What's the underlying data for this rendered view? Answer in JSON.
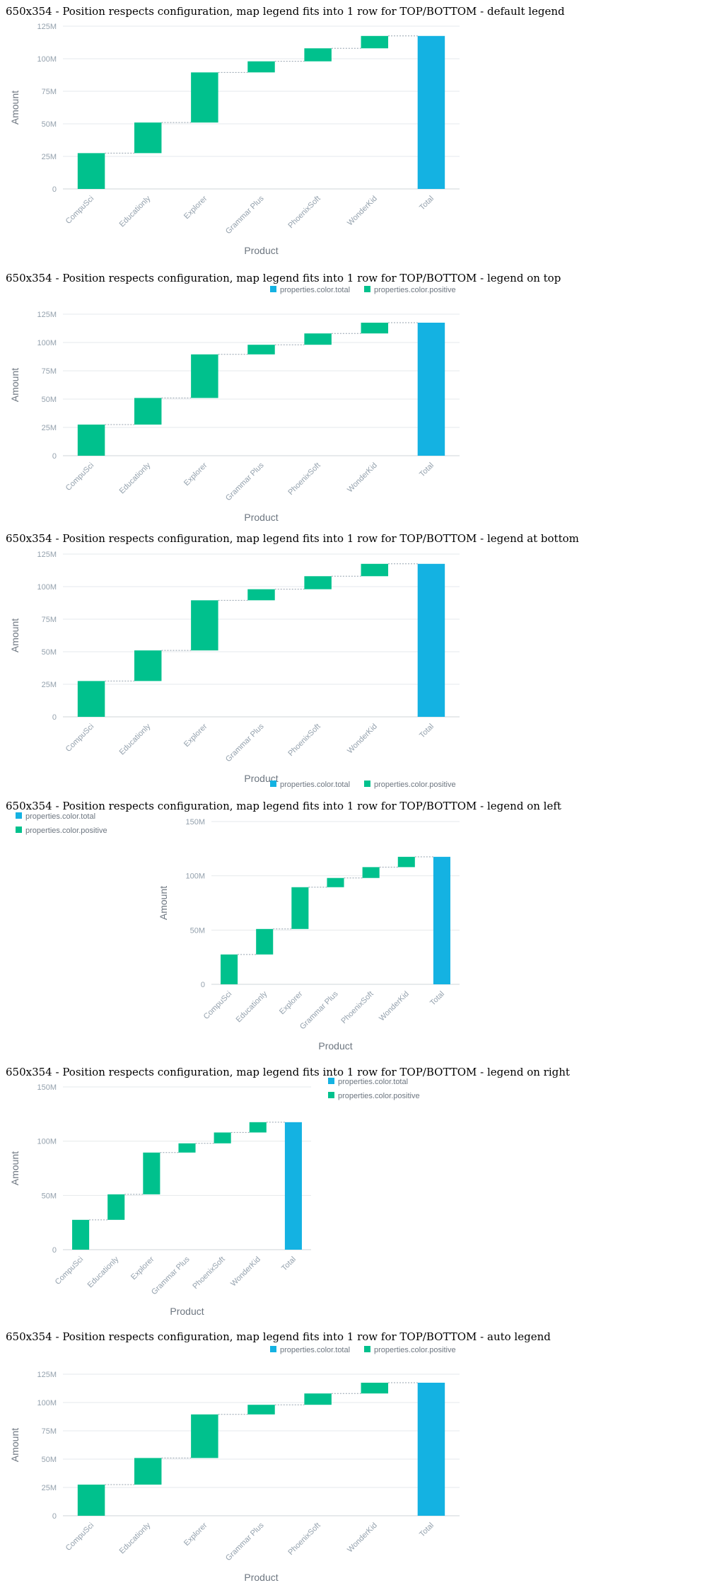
{
  "sections": [
    {
      "title": "650x354 - Position respects configuration, map legend fits into 1 row for TOP/BOTTOM - default legend"
    },
    {
      "title": "650x354 - Position respects configuration, map legend fits into 1 row for TOP/BOTTOM - legend on top"
    },
    {
      "title": "650x354 - Position respects configuration, map legend fits into 1 row for TOP/BOTTOM - legend at bottom"
    },
    {
      "title": "650x354 - Position respects configuration, map legend fits into 1 row for TOP/BOTTOM - legend on left"
    },
    {
      "title": "650x354 - Position respects configuration, map legend fits into 1 row for TOP/BOTTOM - legend on right"
    },
    {
      "title": "650x354 - Position respects configuration, map legend fits into 1 row for TOP/BOTTOM - auto legend"
    }
  ],
  "colors": {
    "positive": "#00c18d",
    "total": "#14b2e2",
    "grid": "#e6e9ec",
    "axis_line": "#cfd5da",
    "connector": "#94a1ad"
  },
  "legend_items": [
    {
      "label": "properties.color.total",
      "color": "#14b2e2"
    },
    {
      "label": "properties.color.positive",
      "color": "#00c18d"
    }
  ],
  "chart_data": [
    {
      "type": "waterfall",
      "legend": "none",
      "xlabel": "Product",
      "ylabel": "Amount",
      "categories": [
        "CompuSci",
        "Educationly",
        "Explorer",
        "Grammar Plus",
        "PhoenixSoft",
        "WonderKid",
        "Total"
      ],
      "values": [
        27.5,
        23.5,
        38.5,
        8.5,
        10.0,
        9.5,
        117.5
      ],
      "ylim": [
        0,
        125
      ],
      "yticks": [
        "0",
        "25M",
        "50M",
        "75M",
        "100M",
        "125M"
      ]
    },
    {
      "type": "waterfall",
      "legend": "top",
      "xlabel": "Product",
      "ylabel": "Amount",
      "categories": [
        "CompuSci",
        "Educationly",
        "Explorer",
        "Grammar Plus",
        "PhoenixSoft",
        "WonderKid",
        "Total"
      ],
      "values": [
        27.5,
        23.5,
        38.5,
        8.5,
        10.0,
        9.5,
        117.5
      ],
      "ylim": [
        0,
        125
      ],
      "yticks": [
        "0",
        "25M",
        "50M",
        "75M",
        "100M",
        "125M"
      ]
    },
    {
      "type": "waterfall",
      "legend": "bottom",
      "xlabel": "Product",
      "ylabel": "Amount",
      "categories": [
        "CompuSci",
        "Educationly",
        "Explorer",
        "Grammar Plus",
        "PhoenixSoft",
        "WonderKid",
        "Total"
      ],
      "values": [
        27.5,
        23.5,
        38.5,
        8.5,
        10.0,
        9.5,
        117.5
      ],
      "ylim": [
        0,
        125
      ],
      "yticks": [
        "0",
        "25M",
        "50M",
        "75M",
        "100M",
        "125M"
      ]
    },
    {
      "type": "waterfall",
      "legend": "left",
      "xlabel": "Product",
      "ylabel": "Amount",
      "categories": [
        "CompuSci",
        "Educationly",
        "Explorer",
        "Grammar Plus",
        "PhoenixSoft",
        "WonderKid",
        "Total"
      ],
      "values": [
        27.5,
        23.5,
        38.5,
        8.5,
        10.0,
        9.5,
        117.5
      ],
      "ylim": [
        0,
        150
      ],
      "yticks": [
        "0",
        "50M",
        "100M",
        "150M"
      ]
    },
    {
      "type": "waterfall",
      "legend": "right",
      "xlabel": "Product",
      "ylabel": "Amount",
      "categories": [
        "CompuSci",
        "Educationly",
        "Explorer",
        "Grammar Plus",
        "PhoenixSoft",
        "WonderKid",
        "Total"
      ],
      "values": [
        27.5,
        23.5,
        38.5,
        8.5,
        10.0,
        9.5,
        117.5
      ],
      "ylim": [
        0,
        150
      ],
      "yticks": [
        "0",
        "50M",
        "100M",
        "150M"
      ]
    },
    {
      "type": "waterfall",
      "legend": "top",
      "xlabel": "Product",
      "ylabel": "Amount",
      "categories": [
        "CompuSci",
        "Educationly",
        "Explorer",
        "Grammar Plus",
        "PhoenixSoft",
        "WonderKid",
        "Total"
      ],
      "values": [
        27.5,
        23.5,
        38.5,
        8.5,
        10.0,
        9.5,
        117.5
      ],
      "ylim": [
        0,
        125
      ],
      "yticks": [
        "0",
        "25M",
        "50M",
        "75M",
        "100M",
        "125M"
      ]
    }
  ]
}
